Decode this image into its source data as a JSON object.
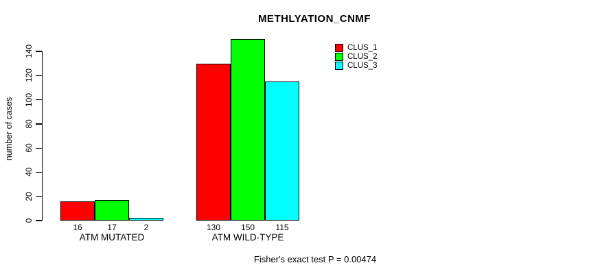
{
  "chart_data": {
    "type": "bar",
    "title": "METHLYATION_CNMF",
    "ylabel": "number of cases",
    "xlabel": "",
    "footnote": "Fisher's exact test P = 0.00474",
    "categories": [
      "ATM MUTATED",
      "ATM WILD-TYPE"
    ],
    "series": [
      {
        "name": "CLUS_1",
        "color": "#ff0000",
        "values": [
          16,
          130
        ]
      },
      {
        "name": "CLUS_2",
        "color": "#00ff00",
        "values": [
          17,
          150
        ]
      },
      {
        "name": "CLUS_3",
        "color": "#00ffff",
        "values": [
          2,
          115
        ]
      }
    ],
    "ylim": [
      0,
      140
    ],
    "yticks": [
      0,
      20,
      40,
      60,
      80,
      100,
      120,
      140
    ],
    "bar_value_labels": [
      [
        "16",
        "17",
        "2"
      ],
      [
        "130",
        "150",
        "115"
      ]
    ],
    "legend": {
      "position": "topright",
      "entries": [
        "CLUS_1",
        "CLUS_2",
        "CLUS_3"
      ]
    },
    "grid": false,
    "axis_color": "#000000",
    "background": "#ffffff"
  }
}
